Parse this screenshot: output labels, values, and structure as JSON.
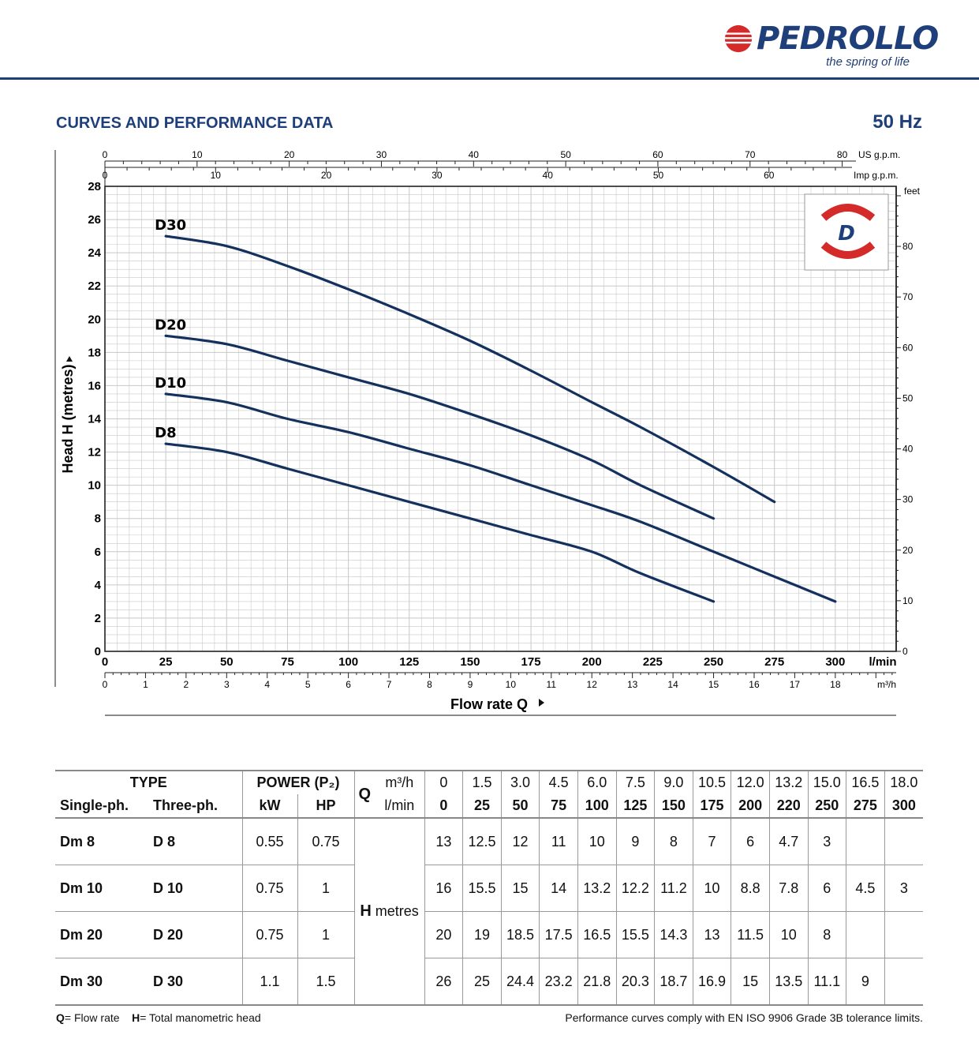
{
  "brand": {
    "name": "PEDROLLO",
    "tagline": "the spring of life"
  },
  "section_title": "CURVES AND PERFORMANCE DATA",
  "frequency": "50 Hz",
  "chart_data": {
    "type": "line",
    "title": "",
    "xlabel": "Flow rate Q",
    "ylabel": "Head H (metres)",
    "x_unit": "l/min",
    "xlim": [
      0,
      325
    ],
    "ylim": [
      0,
      28
    ],
    "x_ticks": [
      0,
      25,
      50,
      75,
      100,
      125,
      150,
      175,
      200,
      225,
      250,
      275,
      300
    ],
    "y_ticks": [
      0,
      2,
      4,
      6,
      8,
      10,
      12,
      14,
      16,
      18,
      20,
      22,
      24,
      26,
      28
    ],
    "grid": true,
    "secondary_axes": {
      "us_gpm": {
        "unit": "US g.p.m.",
        "ticks": [
          0,
          10,
          20,
          30,
          40,
          50,
          60,
          70,
          80
        ]
      },
      "imp_gpm": {
        "unit": "Imp g.p.m.",
        "ticks": [
          0,
          10,
          20,
          30,
          40,
          50,
          60
        ]
      },
      "feet": {
        "unit": "feet",
        "ticks": [
          0,
          10,
          20,
          30,
          40,
          50,
          60,
          70,
          80
        ]
      },
      "m3h": {
        "unit": "m³/h",
        "ticks": [
          0,
          1,
          2,
          3,
          4,
          5,
          6,
          7,
          8,
          9,
          10,
          11,
          12,
          13,
          14,
          15,
          16,
          17,
          18
        ]
      }
    },
    "series": [
      {
        "name": "D30",
        "x": [
          25,
          50,
          75,
          100,
          125,
          150,
          175,
          200,
          220,
          250,
          275
        ],
        "y": [
          25,
          24.4,
          23.2,
          21.8,
          20.3,
          18.7,
          16.9,
          15,
          13.5,
          11.1,
          9
        ]
      },
      {
        "name": "D20",
        "x": [
          25,
          50,
          75,
          100,
          125,
          150,
          175,
          200,
          220,
          250
        ],
        "y": [
          19,
          18.5,
          17.5,
          16.5,
          15.5,
          14.3,
          13,
          11.5,
          10,
          8
        ]
      },
      {
        "name": "D10",
        "x": [
          25,
          50,
          75,
          100,
          125,
          150,
          175,
          200,
          220,
          250,
          275,
          300
        ],
        "y": [
          15.5,
          15,
          14,
          13.2,
          12.2,
          11.2,
          10,
          8.8,
          7.8,
          6,
          4.5,
          3
        ]
      },
      {
        "name": "D8",
        "x": [
          25,
          50,
          75,
          100,
          125,
          150,
          175,
          200,
          220,
          250
        ],
        "y": [
          12.5,
          12,
          11,
          10,
          9,
          8,
          7,
          6,
          4.7,
          3
        ]
      }
    ],
    "badge": "D"
  },
  "table": {
    "type_label": "TYPE",
    "power_label": "POWER (P₂)",
    "single_ph": "Single-ph.",
    "three_ph": "Three-ph.",
    "kw": "kW",
    "hp": "HP",
    "q_label": "Q",
    "m3h_label": "m³/h",
    "lmin_label": "l/min",
    "h_label": "H",
    "h_unit": "metres",
    "m3h_values": [
      "0",
      "1.5",
      "3.0",
      "4.5",
      "6.0",
      "7.5",
      "9.0",
      "10.5",
      "12.0",
      "13.2",
      "15.0",
      "16.5",
      "18.0"
    ],
    "lmin_values": [
      "0",
      "25",
      "50",
      "75",
      "100",
      "125",
      "150",
      "175",
      "200",
      "220",
      "250",
      "275",
      "300"
    ],
    "rows": [
      {
        "single": "Dm 8",
        "three": "D 8",
        "kw": "0.55",
        "hp": "0.75",
        "heads": [
          "13",
          "12.5",
          "12",
          "11",
          "10",
          "9",
          "8",
          "7",
          "6",
          "4.7",
          "3",
          "",
          ""
        ]
      },
      {
        "single": "Dm 10",
        "three": "D 10",
        "kw": "0.75",
        "hp": "1",
        "heads": [
          "16",
          "15.5",
          "15",
          "14",
          "13.2",
          "12.2",
          "11.2",
          "10",
          "8.8",
          "7.8",
          "6",
          "4.5",
          "3"
        ]
      },
      {
        "single": "Dm 20",
        "three": "D 20",
        "kw": "0.75",
        "hp": "1",
        "heads": [
          "20",
          "19",
          "18.5",
          "17.5",
          "16.5",
          "15.5",
          "14.3",
          "13",
          "11.5",
          "10",
          "8",
          "",
          ""
        ]
      },
      {
        "single": "Dm 30",
        "three": "D 30",
        "kw": "1.1",
        "hp": "1.5",
        "heads": [
          "26",
          "25",
          "24.4",
          "23.2",
          "21.8",
          "20.3",
          "18.7",
          "16.9",
          "15",
          "13.5",
          "11.1",
          "9",
          ""
        ]
      }
    ]
  },
  "footnote": {
    "q_key": "Q",
    "q_text": "= Flow rate",
    "h_key": "H",
    "h_text": "= Total manometric head",
    "compliance": "Performance curves comply with EN ISO 9906 Grade 3B tolerance limits."
  },
  "colors": {
    "brand_blue": "#1f3f7a",
    "curve": "#13315c",
    "brand_red": "#d42a2a",
    "grid": "#c8c8c8"
  }
}
